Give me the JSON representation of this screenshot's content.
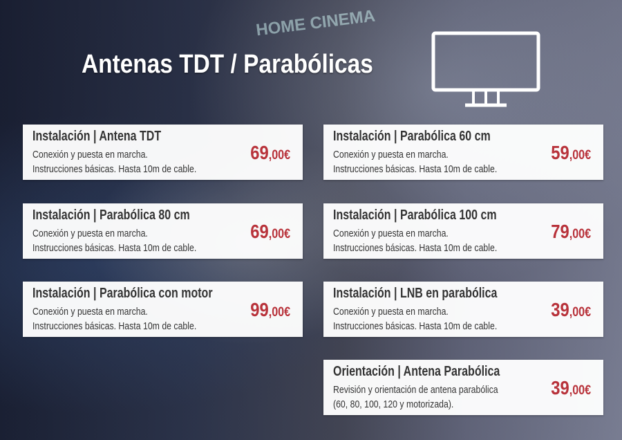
{
  "header": {
    "title": "Antenas TDT / Parabólicas",
    "store_sign": "HOME CINEMA",
    "icon": "tv-monitor-icon"
  },
  "colors": {
    "price": "#b8323a",
    "card": "#ffffff",
    "title": "#ffffff"
  },
  "cards": [
    {
      "title": "Instalación | Antena TDT",
      "line1": "Conexión y puesta en marcha.",
      "line2": "Instrucciones básicas. Hasta 10m de cable.",
      "price_int": "69",
      "price_dec": ",00€"
    },
    {
      "title": "Instalación | Parabólica 60 cm",
      "line1": "Conexión y puesta en marcha.",
      "line2": "Instrucciones básicas. Hasta 10m de cable.",
      "price_int": "59",
      "price_dec": ",00€"
    },
    {
      "title": "Instalación | Parabólica 80 cm",
      "line1": "Conexión y puesta en marcha.",
      "line2": "Instrucciones básicas. Hasta 10m de cable.",
      "price_int": "69",
      "price_dec": ",00€"
    },
    {
      "title": "Instalación | Parabólica 100 cm",
      "line1": "Conexión y puesta en marcha.",
      "line2": "Instrucciones básicas. Hasta 10m de cable.",
      "price_int": "79",
      "price_dec": ",00€"
    },
    {
      "title": "Instalación | Parabólica con motor",
      "line1": "Conexión y puesta en marcha.",
      "line2": "Instrucciones básicas. Hasta 10m de cable.",
      "price_int": "99",
      "price_dec": ",00€"
    },
    {
      "title": "Instalación | LNB en parabólica",
      "line1": "Conexión y puesta en marcha.",
      "line2": "Instrucciones básicas. Hasta 10m de cable.",
      "price_int": "39",
      "price_dec": ",00€"
    },
    {
      "title": "Orientación | Antena Parabólica",
      "line1": "Revisión y orientación de antena parabólica",
      "line2": "(60, 80, 100, 120 y motorizada).",
      "price_int": "39",
      "price_dec": ",00€"
    }
  ]
}
